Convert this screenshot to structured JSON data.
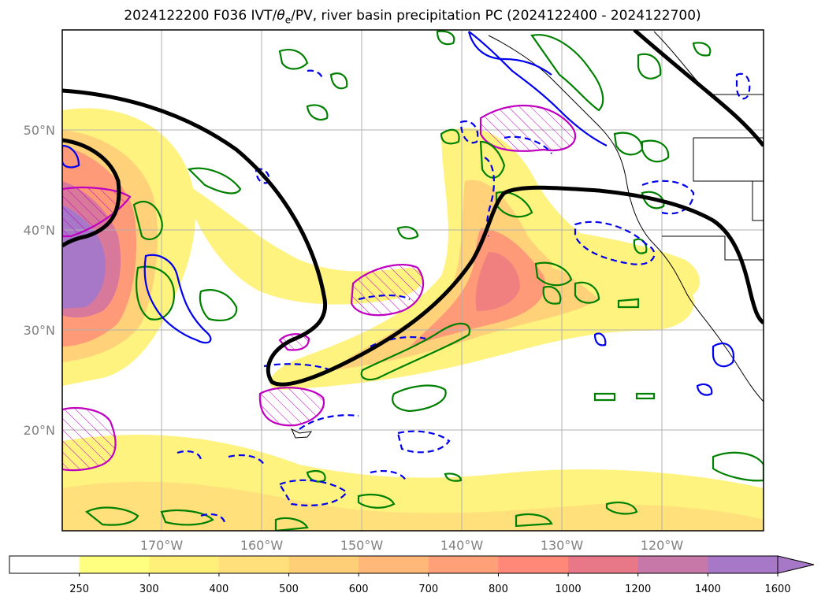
{
  "title": {
    "run": "2024122200 F036 IVT/",
    "theta": "θ",
    "theta_sub": "e",
    "rest": "/PV, river basin precipitation PC (2024122400 - 2024122700)"
  },
  "map": {
    "lat_labels": [
      "50°N",
      "40°N",
      "30°N",
      "20°N"
    ],
    "lon_labels": [
      "170°W",
      "160°W",
      "150°W",
      "140°W",
      "130°W",
      "120°W"
    ]
  },
  "colorbar": {
    "ticks": [
      "250",
      "300",
      "400",
      "500",
      "600",
      "700",
      "800",
      "1000",
      "1200",
      "1400",
      "1600"
    ],
    "colors": [
      "#ffffff",
      "#ffff80",
      "#fff07a",
      "#ffe07a",
      "#ffcf78",
      "#ffb878",
      "#ffa078",
      "#ff8878",
      "#e87888",
      "#c878a8",
      "#a878c8"
    ]
  },
  "colors": {
    "ivt_high": "#a070c8",
    "pv_contour": "#000000",
    "precip_green": "#008000",
    "dashed_blue": "#0000ee",
    "magenta": "#c000c0"
  }
}
